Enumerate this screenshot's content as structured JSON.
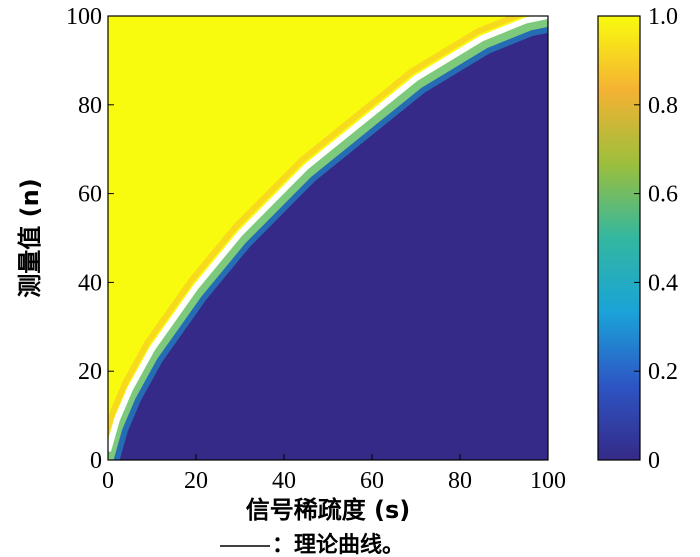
{
  "chart_data": {
    "type": "heatmap",
    "title": "",
    "xlabel": "信号稀疏度 (s)",
    "ylabel": "测量值 (n)",
    "caption": "：理论曲线。",
    "xlim": [
      0,
      100
    ],
    "ylim": [
      0,
      100
    ],
    "xticks": [
      "0",
      "20",
      "40",
      "60",
      "80",
      "100"
    ],
    "yticks": [
      "0",
      "20",
      "40",
      "60",
      "80",
      "100"
    ],
    "colorbar": {
      "range": [
        0,
        1
      ],
      "ticks": [
        "0",
        "0.2",
        "0.4",
        "0.6",
        "0.8",
        "1.0"
      ],
      "colors": [
        "#352a87",
        "#2d55c4",
        "#1aa3d8",
        "#33b7a0",
        "#9cbf3c",
        "#f5b233",
        "#f9fb0e"
      ]
    },
    "regions": [
      {
        "name": "upper-left",
        "value": 1.0,
        "color": "#f9fb0e"
      },
      {
        "name": "lower-right",
        "value": 0.0,
        "color": "#352a87"
      }
    ],
    "theoretical_curve": {
      "color": "#ffffff",
      "x": [
        0,
        2,
        5,
        10,
        15,
        20,
        25,
        30,
        35,
        40,
        45,
        50,
        55,
        60,
        65,
        70,
        75,
        80,
        85,
        90,
        95,
        100
      ],
      "y": [
        2,
        9,
        16,
        25,
        32,
        39,
        45,
        51,
        56,
        61,
        66,
        70,
        74,
        78,
        82,
        86,
        89,
        92,
        95,
        97,
        99,
        100
      ]
    }
  }
}
